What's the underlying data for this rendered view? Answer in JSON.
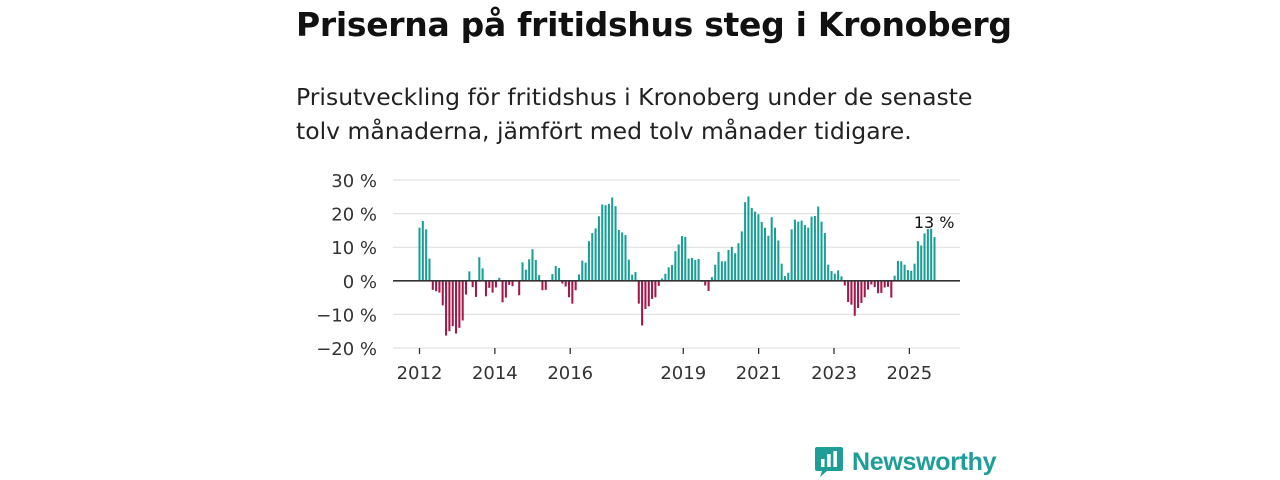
{
  "header": {
    "title": "Priserna på fritidshus steg i Kronoberg",
    "subtitle": "Prisutveckling för fritidshus i Kronoberg under de senaste tolv månaderna, jämfört med tolv månader tidigare."
  },
  "brand": {
    "name": "Newsworthy",
    "icon": "newsworthy-logo-icon"
  },
  "colors": {
    "positive": "#1a9f96",
    "negative": "#a3184a",
    "brand": "#1f9e98",
    "grid": "#dddddd",
    "zero_line": "#333333"
  },
  "chart_data": {
    "type": "bar",
    "title": "Priserna på fritidshus steg i Kronoberg",
    "subtitle": "Prisutveckling för fritidshus i Kronoberg under de senaste tolv månaderna, jämfört med tolv månader tidigare.",
    "xlabel": "",
    "ylabel": "",
    "unit": "%",
    "ylim": [
      -20,
      30
    ],
    "yticks": [
      30,
      20,
      10,
      0,
      -10,
      -20
    ],
    "ytick_labels": [
      "30 %",
      "20 %",
      "10 %",
      "0 %",
      "−10 %",
      "−20 %"
    ],
    "grid": true,
    "x_start": 2012.0,
    "x_end": 2025.667,
    "xticks": [
      2012,
      2014,
      2016,
      2019,
      2021,
      2023,
      2025
    ],
    "xtick_labels": [
      "2012",
      "2014",
      "2016",
      "2019",
      "2021",
      "2023",
      "2025"
    ],
    "frequency": "monthly",
    "series": [
      {
        "name": "Prisutveckling",
        "values": [
          15.8,
          17.8,
          15.3,
          6.6,
          -2.7,
          -3.1,
          -3.5,
          -7.3,
          -16.3,
          -15.0,
          -13.5,
          -15.7,
          -14.0,
          -11.8,
          -4.1,
          2.8,
          -1.9,
          -4.8,
          7.0,
          3.7,
          -4.6,
          -2.1,
          -3.5,
          -2.0,
          0.9,
          -6.4,
          -5.0,
          -1.2,
          -1.6,
          -0.2,
          -4.3,
          5.5,
          3.3,
          6.4,
          9.4,
          6.2,
          1.7,
          -2.8,
          -2.7,
          0.1,
          2.0,
          4.4,
          3.8,
          -0.8,
          -1.7,
          -4.9,
          -6.8,
          -2.8,
          1.9,
          6.0,
          5.4,
          11.8,
          14.2,
          15.6,
          19.2,
          22.7,
          22.5,
          22.9,
          24.8,
          22.2,
          15.1,
          14.4,
          13.6,
          6.3,
          1.8,
          2.6,
          -6.8,
          -13.3,
          -8.4,
          -7.6,
          -5.4,
          -4.9,
          -1.5,
          0.7,
          2.1,
          4.0,
          4.7,
          8.8,
          10.8,
          13.3,
          13.1,
          6.6,
          6.8,
          6.2,
          6.5,
          -0.3,
          -1.4,
          -3.0,
          1.1,
          4.8,
          8.6,
          5.8,
          5.8,
          9.2,
          10.1,
          8.2,
          11.2,
          14.7,
          23.4,
          25.1,
          21.7,
          20.6,
          19.8,
          17.5,
          15.8,
          13.4,
          18.9,
          15.8,
          12.0,
          5.1,
          1.4,
          2.4,
          15.3,
          18.2,
          17.6,
          17.9,
          16.6,
          15.8,
          19.1,
          19.3,
          22.1,
          17.6,
          14.2,
          4.8,
          2.9,
          2.1,
          3.1,
          1.3,
          -1.4,
          -6.3,
          -7.1,
          -10.4,
          -8.1,
          -6.6,
          -4.9,
          -2.6,
          -1.1,
          -1.9,
          -3.7,
          -3.6,
          -2.0,
          -1.8,
          -5.0,
          1.5,
          5.9,
          5.8,
          4.8,
          3.2,
          3.0,
          5.1,
          11.8,
          10.5,
          14.1,
          15.4,
          15.5,
          13.0
        ]
      }
    ],
    "annotations": [
      {
        "text": "13 %",
        "target": "last"
      }
    ]
  }
}
